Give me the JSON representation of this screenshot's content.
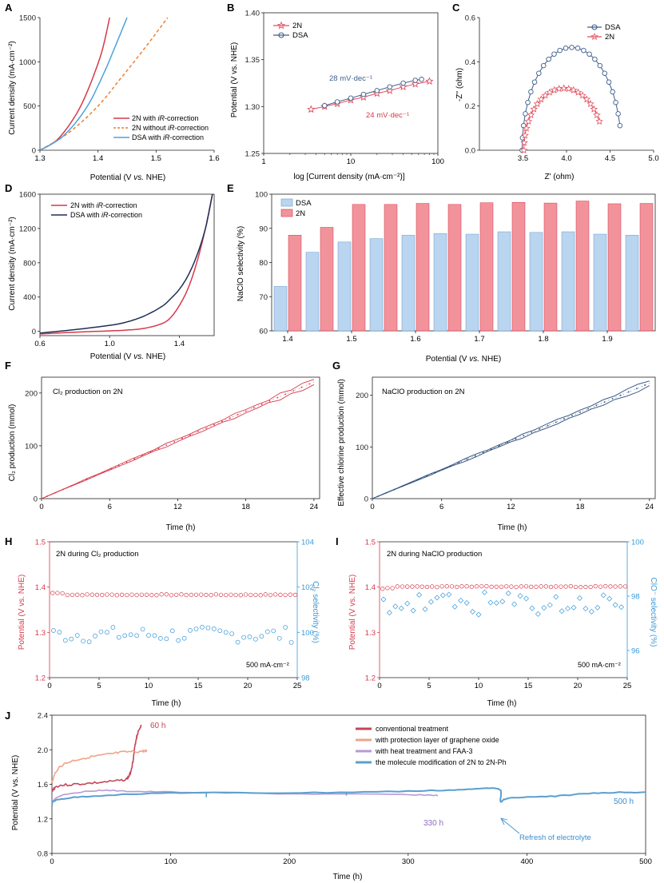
{
  "chart_data": [
    {
      "panel": "A",
      "type": "line",
      "xlabel": "Potential (V vs. NHE)",
      "ylabel": "Current density (mA·cm⁻²)",
      "xlim": [
        1.3,
        1.6
      ],
      "ylim": [
        0,
        1500
      ],
      "xticks": [
        1.3,
        1.4,
        1.5,
        1.6
      ],
      "yticks": [
        0,
        500,
        1000,
        1500
      ],
      "series": [
        {
          "name": "2N with iR-correction",
          "color": "#d6394b",
          "dash": false,
          "x": [
            1.3,
            1.33,
            1.36,
            1.38,
            1.4,
            1.41,
            1.42
          ],
          "y": [
            0,
            120,
            380,
            640,
            980,
            1200,
            1500
          ]
        },
        {
          "name": "2N without iR-correction",
          "color": "#f07f2d",
          "dash": true,
          "x": [
            1.3,
            1.35,
            1.4,
            1.44,
            1.48,
            1.52
          ],
          "y": [
            0,
            200,
            500,
            820,
            1150,
            1500
          ]
        },
        {
          "name": "DSA with iR-correction",
          "color": "#4ea3d9",
          "dash": false,
          "x": [
            1.3,
            1.34,
            1.38,
            1.41,
            1.43,
            1.45
          ],
          "y": [
            0,
            160,
            480,
            870,
            1180,
            1500
          ]
        }
      ]
    },
    {
      "panel": "B",
      "type": "scatter",
      "xlabel": "log [Current density (mA·cm⁻²)]",
      "ylabel": "Potential (V vs. NHE)",
      "xscale": "log",
      "xlim": [
        1,
        100
      ],
      "ylim": [
        1.25,
        1.4
      ],
      "xticks": [
        1,
        10,
        100
      ],
      "yticks": [
        1.25,
        1.3,
        1.35,
        1.4
      ],
      "series": [
        {
          "name": "2N",
          "color": "#e0505e",
          "marker": "star",
          "x": [
            3.5,
            5,
            7,
            10,
            14,
            20,
            28,
            40,
            55,
            80
          ],
          "y": [
            1.297,
            1.3,
            1.303,
            1.307,
            1.31,
            1.314,
            1.317,
            1.321,
            1.324,
            1.327
          ]
        },
        {
          "name": "DSA",
          "color": "#3d5f8c",
          "marker": "circle",
          "x": [
            5,
            7,
            10,
            14,
            20,
            28,
            40,
            55,
            65
          ],
          "y": [
            1.301,
            1.305,
            1.309,
            1.313,
            1.317,
            1.321,
            1.325,
            1.328,
            1.329
          ]
        }
      ],
      "annotations": [
        "28 mV·dec⁻¹",
        "24 mV·dec⁻¹"
      ]
    },
    {
      "panel": "C",
      "type": "scatter",
      "xlabel": "Z' (ohm)",
      "ylabel": "-Z'' (ohm)",
      "xlim": [
        3.0,
        5.0
      ],
      "ylim": [
        0,
        0.6
      ],
      "xticks": [
        3.5,
        4.0,
        4.5,
        5.0
      ],
      "yticks": [
        0.0,
        0.2,
        0.4,
        0.6
      ],
      "series": [
        {
          "name": "DSA",
          "color": "#3d5f8c",
          "marker": "circle",
          "center": 4.06,
          "radius": 0.57,
          "height": 0.465,
          "x_end": 4.62
        },
        {
          "name": "2N",
          "color": "#e0505e",
          "marker": "star",
          "center": 3.97,
          "radius": 0.46,
          "height": 0.28,
          "x_end": 4.4
        }
      ]
    },
    {
      "panel": "D",
      "type": "line",
      "xlabel": "Potential (V vs. NHE)",
      "ylabel": "Current density (mA·cm⁻²)",
      "xlim": [
        0.6,
        1.6
      ],
      "ylim": [
        -50,
        1600
      ],
      "xticks": [
        0.6,
        1.0,
        1.4
      ],
      "yticks": [
        0,
        400,
        800,
        1200,
        1600
      ],
      "series": [
        {
          "name": "2N with iR-correction",
          "color": "#d6394b",
          "x": [
            0.6,
            0.8,
            1.0,
            1.1,
            1.2,
            1.3,
            1.35,
            1.4,
            1.45,
            1.5,
            1.55,
            1.59
          ],
          "y": [
            -30,
            -10,
            5,
            15,
            35,
            90,
            160,
            300,
            500,
            800,
            1200,
            1600
          ]
        },
        {
          "name": "DSA with iR-correction",
          "color": "#1f2f57",
          "x": [
            0.6,
            0.8,
            1.0,
            1.1,
            1.2,
            1.3,
            1.35,
            1.4,
            1.45,
            1.5,
            1.55,
            1.59
          ],
          "y": [
            -20,
            20,
            70,
            110,
            180,
            290,
            380,
            490,
            650,
            880,
            1200,
            1600
          ]
        }
      ]
    },
    {
      "panel": "E",
      "type": "bar",
      "xlabel": "Potential (V vs. NHE)",
      "ylabel": "NaClO selectivity (%)",
      "ylim": [
        60,
        100
      ],
      "yticks": [
        60,
        70,
        80,
        90,
        100
      ],
      "xticks": [
        1.4,
        1.5,
        1.6,
        1.7,
        1.8,
        1.9
      ],
      "categories": [
        1.4,
        1.45,
        1.5,
        1.55,
        1.6,
        1.65,
        1.7,
        1.75,
        1.8,
        1.85,
        1.9,
        1.95
      ],
      "series": [
        {
          "name": "DSA",
          "color": "#b9d5ef",
          "values": [
            73,
            83,
            86,
            87,
            88,
            88.5,
            88.3,
            89,
            88.8,
            89,
            88.3,
            88
          ]
        },
        {
          "name": "2N",
          "color": "#f2939b",
          "values": [
            88,
            90.3,
            97,
            97,
            97.3,
            97,
            97.5,
            97.6,
            97.4,
            98,
            97.2,
            97.3
          ]
        }
      ]
    },
    {
      "panel": "F",
      "type": "line",
      "title": "Cl₂ production on 2N",
      "xlabel": "Time (h)",
      "ylabel": "Cl₂ production (mmol)",
      "xlim": [
        0,
        24.5
      ],
      "ylim": [
        0,
        230
      ],
      "xticks": [
        0,
        6,
        12,
        18,
        24
      ],
      "yticks": [
        0,
        100,
        200
      ],
      "color": "#d6394b",
      "slope": 9.2
    },
    {
      "panel": "G",
      "type": "line",
      "title": "NaClO production on 2N",
      "xlabel": "Time (h)",
      "ylabel": "Effective chlorine production (mmol)",
      "xlim": [
        0,
        24.5
      ],
      "ylim": [
        0,
        235
      ],
      "xticks": [
        0,
        6,
        12,
        18,
        24
      ],
      "yticks": [
        0,
        100,
        200
      ],
      "color": "#2c4c7a",
      "slope": 9.3
    },
    {
      "panel": "H",
      "type": "scatter",
      "title": "2N during Cl₂ production",
      "note": "500 mA·cm⁻²",
      "xlabel": "Time (h)",
      "ylabel": "Potential (V vs. NHE)",
      "y2label": "Cl₂ selectivity (%)",
      "xlim": [
        0,
        25
      ],
      "ylim": [
        1.2,
        1.5
      ],
      "y2lim": [
        98,
        104
      ],
      "xticks": [
        0,
        5,
        10,
        15,
        20,
        25
      ],
      "yticks": [
        1.2,
        1.3,
        1.4,
        1.5
      ],
      "y2ticks": [
        98,
        100,
        102,
        104
      ],
      "potential": 1.383,
      "selectivity": 99.9
    },
    {
      "panel": "I",
      "type": "scatter",
      "title": "2N during NaClO production",
      "note": "500 mA·cm⁻²",
      "xlabel": "Time (h)",
      "ylabel": "Potential (V vs. NHE)",
      "y2label": "ClO⁻ selectivity (%)",
      "xlim": [
        0,
        25
      ],
      "ylim": [
        1.2,
        1.5
      ],
      "y2lim": [
        95,
        100
      ],
      "xticks": [
        0,
        5,
        10,
        15,
        20,
        25
      ],
      "yticks": [
        1.2,
        1.3,
        1.4,
        1.5
      ],
      "y2ticks": [
        96,
        98,
        100
      ],
      "potential": 1.401,
      "selectivity": 97.7
    },
    {
      "panel": "J",
      "type": "line",
      "xlabel": "Time (h)",
      "ylabel": "Potential (V vs. NHE)",
      "xlim": [
        0,
        500
      ],
      "ylim": [
        0.8,
        2.4
      ],
      "xticks": [
        0,
        100,
        200,
        300,
        400,
        500
      ],
      "yticks": [
        0.8,
        1.2,
        1.6,
        2.0,
        2.4
      ],
      "series": [
        {
          "name": "conventional treatment",
          "color": "#c4445a",
          "x": [
            0,
            5,
            20,
            40,
            60,
            65,
            68,
            70,
            72,
            75
          ],
          "y": [
            1.52,
            1.58,
            1.6,
            1.62,
            1.65,
            1.7,
            1.85,
            2.05,
            2.18,
            2.28
          ]
        },
        {
          "name": "with protection layer of graphene oxide",
          "color": "#eea58a",
          "x": [
            0,
            5,
            15,
            30,
            45,
            60,
            75,
            80
          ],
          "y": [
            1.62,
            1.78,
            1.86,
            1.91,
            1.94,
            1.97,
            1.98,
            1.99
          ]
        },
        {
          "name": "with heat treatment and FAA-3",
          "color": "#b89ad6",
          "x": [
            0,
            10,
            40,
            60,
            100,
            200,
            300,
            325
          ],
          "y": [
            1.4,
            1.48,
            1.53,
            1.52,
            1.51,
            1.49,
            1.48,
            1.47
          ]
        },
        {
          "name": "the molecule modification of 2N to 2N-Ph",
          "color": "#5b9fcf",
          "x": [
            0,
            5,
            30,
            100,
            200,
            300,
            350,
            376,
            378,
            385,
            420,
            460,
            500
          ],
          "y": [
            1.38,
            1.42,
            1.46,
            1.5,
            1.5,
            1.52,
            1.54,
            1.55,
            1.4,
            1.44,
            1.46,
            1.5,
            1.51
          ]
        }
      ],
      "annotations": [
        "60 h",
        "330 h",
        "500 h",
        "Refresh of electrolyte"
      ]
    }
  ],
  "panels": {
    "A": {
      "label": "A",
      "xlabel": "Potential (V ",
      "vs": "vs.",
      "xlabel_end": " NHE)",
      "ylabel": "Current density (mA·cm⁻²)",
      "legend": [
        {
          "pre": "2N with ",
          "it": "iR",
          "post": "-correction"
        },
        {
          "pre": "2N without ",
          "it": "iR",
          "post": "-correction"
        },
        {
          "pre": "DSA with ",
          "it": "iR",
          "post": "-correction"
        }
      ],
      "ticks_x": [
        "1.3",
        "1.4",
        "1.5",
        "1.6"
      ],
      "ticks_y": [
        "0",
        "500",
        "1000",
        "1500"
      ]
    },
    "B": {
      "label": "B",
      "xlabel": "log [Current density (mA·cm⁻²)]",
      "ylabel": "Potential (V vs. NHE)",
      "legend": [
        "2N",
        "DSA"
      ],
      "ann1": "28 mV·dec⁻¹",
      "ann2": "24 mV·dec⁻¹",
      "ticks_x": [
        "1",
        "10",
        "100"
      ],
      "ticks_y": [
        "1.25",
        "1.30",
        "1.35",
        "1.40"
      ]
    },
    "C": {
      "label": "C",
      "xlabel": "Z' (ohm)",
      "ylabel": "-Z'' (ohm)",
      "legend": [
        "DSA",
        "2N"
      ],
      "ticks_x": [
        "3.5",
        "4.0",
        "4.5",
        "5.0"
      ],
      "ticks_y": [
        "0.0",
        "0.2",
        "0.4",
        "0.6"
      ]
    },
    "D": {
      "label": "D",
      "xlabel": "Potential (V ",
      "vs": "vs.",
      "xlabel_end": " NHE)",
      "ylabel": "Current density (mA·cm⁻²)",
      "legend": [
        {
          "pre": "2N with ",
          "it": "iR",
          "post": "-correction"
        },
        {
          "pre": "DSA with ",
          "it": "iR",
          "post": "-correction"
        }
      ],
      "ticks_x": [
        "0.6",
        "1.0",
        "1.4"
      ],
      "ticks_y": [
        "0",
        "400",
        "800",
        "1200",
        "1600"
      ]
    },
    "E": {
      "label": "E",
      "xlabel": "Potential (V ",
      "vs": "vs.",
      "xlabel_end": " NHE)",
      "ylabel": "NaClO selectivity (%)",
      "legend": [
        "DSA",
        "2N"
      ],
      "ticks_x": [
        "1.4",
        "1.5",
        "1.6",
        "1.7",
        "1.8",
        "1.9"
      ],
      "ticks_y": [
        "60",
        "70",
        "80",
        "90",
        "100"
      ]
    },
    "F": {
      "label": "F",
      "title": "Cl₂ production on 2N",
      "xlabel": "Time (h)",
      "ylabel": "Cl₂ production (mmol)",
      "ticks_x": [
        "0",
        "6",
        "12",
        "18",
        "24"
      ],
      "ticks_y": [
        "0",
        "100",
        "200"
      ]
    },
    "G": {
      "label": "G",
      "title": "NaClO production on 2N",
      "xlabel": "Time (h)",
      "ylabel": "Effective chlorine production (mmol)",
      "ticks_x": [
        "0",
        "6",
        "12",
        "18",
        "24"
      ],
      "ticks_y": [
        "0",
        "100",
        "200"
      ]
    },
    "H": {
      "label": "H",
      "title": "2N during Cl₂ production",
      "note": "500 mA·cm⁻²",
      "xlabel": "Time (h)",
      "ylabel": "Potential (V vs. NHE)",
      "y2label": "Cl₂ selectivity (%)",
      "ticks_x": [
        "0",
        "5",
        "10",
        "15",
        "20",
        "25"
      ],
      "ticks_y": [
        "1.2",
        "1.3",
        "1.4",
        "1.5"
      ],
      "ticks_y2": [
        "98",
        "100",
        "102",
        "104"
      ]
    },
    "I": {
      "label": "I",
      "title": "2N during NaClO production",
      "note": "500 mA·cm⁻²",
      "xlabel": "Time (h)",
      "ylabel": "Potential (V vs. NHE)",
      "y2label": "ClO⁻ selectivity (%)",
      "ticks_x": [
        "0",
        "5",
        "10",
        "15",
        "20",
        "25"
      ],
      "ticks_y": [
        "1.2",
        "1.3",
        "1.4",
        "1.5"
      ],
      "ticks_y2": [
        "96",
        "98",
        "100"
      ]
    },
    "J": {
      "label": "J",
      "xlabel": "Time (h)",
      "ylabel": "Potential (V vs. NHE)",
      "legend": [
        "conventional treatment",
        "with protection layer of graphene oxide",
        "with heat treatment and FAA-3",
        "the molecule modification of 2N to 2N-Ph"
      ],
      "ann_60": "60 h",
      "ann_330": "330 h",
      "ann_500": "500 h",
      "ann_refresh": "Refresh of electrolyte",
      "ticks_x": [
        "0",
        "100",
        "200",
        "300",
        "400",
        "500"
      ],
      "ticks_y": [
        "0.8",
        "1.2",
        "1.6",
        "2.0",
        "2.4"
      ]
    }
  }
}
